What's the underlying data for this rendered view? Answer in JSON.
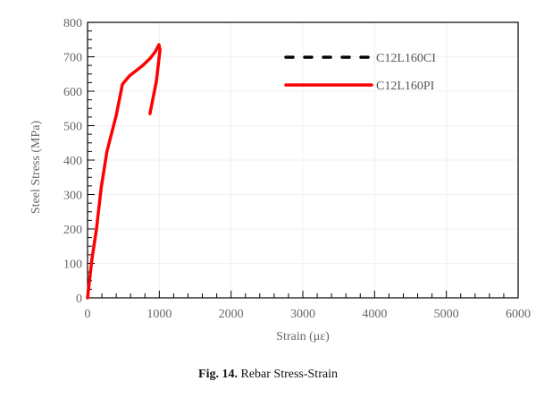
{
  "chart_data": {
    "type": "line",
    "title": "",
    "xlabel": "Strain (με)",
    "ylabel": "Steel Stress (MPa)",
    "xlim": [
      0,
      6000
    ],
    "ylim": [
      0,
      800
    ],
    "xticks": [
      0,
      1000,
      2000,
      3000,
      4000,
      5000,
      6000
    ],
    "yticks": [
      0,
      100,
      200,
      300,
      400,
      500,
      600,
      700,
      800
    ],
    "grid": true,
    "legend_position": "upper right",
    "series": [
      {
        "name": "C12L160CI",
        "color": "#000000",
        "style": "dashed",
        "x": [],
        "y": []
      },
      {
        "name": "C12L160PI",
        "color": "#ff0000",
        "style": "solid",
        "x": [
          0,
          60,
          125,
          190,
          270,
          400,
          485,
          585,
          770,
          870,
          945,
          995,
          1010,
          960,
          870
        ],
        "y": [
          0,
          110,
          200,
          320,
          425,
          530,
          620,
          645,
          675,
          695,
          715,
          735,
          720,
          630,
          535
        ]
      }
    ]
  },
  "caption": {
    "label": "Fig. 14.",
    "text": "Rebar Stress-Strain"
  }
}
